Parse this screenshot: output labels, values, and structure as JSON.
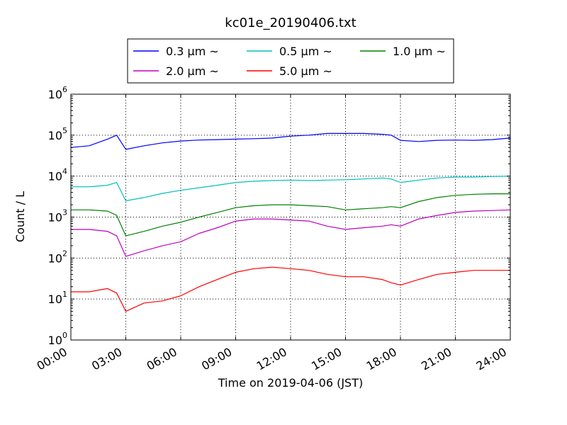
{
  "chart_data": {
    "type": "line",
    "title": "kc01e_20190406.txt",
    "xlabel": "Time on 2019-04-06 (JST)",
    "ylabel": "Count / L",
    "yscale": "log",
    "ylim_exponent": [
      0,
      6
    ],
    "x_tick_labels": [
      "00:00",
      "03:00",
      "06:00",
      "09:00",
      "12:00",
      "15:00",
      "18:00",
      "21:00",
      "24:00"
    ],
    "y_tick_exponents": [
      "0",
      "1",
      "2",
      "3",
      "4",
      "5",
      "6"
    ],
    "y_tick_base": "10",
    "grid": true,
    "legend_position": "top-center",
    "x_hours": [
      0,
      1,
      2,
      2.5,
      3,
      4,
      5,
      6,
      7,
      8,
      9,
      10,
      11,
      12,
      13,
      14,
      15,
      16,
      17,
      17.5,
      18,
      19,
      20,
      21,
      22,
      23,
      24
    ],
    "series": [
      {
        "name": "0.3 µm ~",
        "color": "#0000ff",
        "values": [
          50000,
          55000,
          80000,
          100000,
          45000,
          55000,
          65000,
          72000,
          76000,
          78000,
          80000,
          82000,
          85000,
          95000,
          100000,
          110000,
          110000,
          110000,
          105000,
          100000,
          75000,
          70000,
          75000,
          76000,
          75000,
          78000,
          85000
        ]
      },
      {
        "name": "0.5 µm ~",
        "color": "#00bfbf",
        "values": [
          5500,
          5500,
          6000,
          7000,
          2500,
          3000,
          3800,
          4500,
          5200,
          6000,
          7000,
          7500,
          7800,
          8000,
          7800,
          8000,
          8200,
          8500,
          9000,
          8500,
          7000,
          8000,
          9000,
          9500,
          9500,
          9800,
          10000
        ]
      },
      {
        "name": "1.0 µm ~",
        "color": "#008000",
        "values": [
          1500,
          1500,
          1400,
          1100,
          350,
          450,
          600,
          750,
          1000,
          1300,
          1700,
          1900,
          2000,
          2000,
          1900,
          1800,
          1500,
          1600,
          1700,
          1800,
          1700,
          2400,
          3000,
          3400,
          3600,
          3700,
          3700
        ]
      },
      {
        "name": "2.0 µm ~",
        "color": "#bf00bf",
        "values": [
          500,
          500,
          450,
          350,
          110,
          150,
          200,
          250,
          400,
          550,
          800,
          900,
          900,
          850,
          800,
          600,
          500,
          550,
          600,
          650,
          600,
          900,
          1100,
          1300,
          1400,
          1450,
          1500
        ]
      },
      {
        "name": "5.0 µm ~",
        "color": "#ff0000",
        "values": [
          15,
          15,
          18,
          14,
          5,
          8,
          9,
          12,
          20,
          30,
          45,
          55,
          60,
          55,
          50,
          40,
          35,
          35,
          30,
          25,
          22,
          30,
          40,
          45,
          50,
          50,
          50
        ]
      }
    ]
  }
}
